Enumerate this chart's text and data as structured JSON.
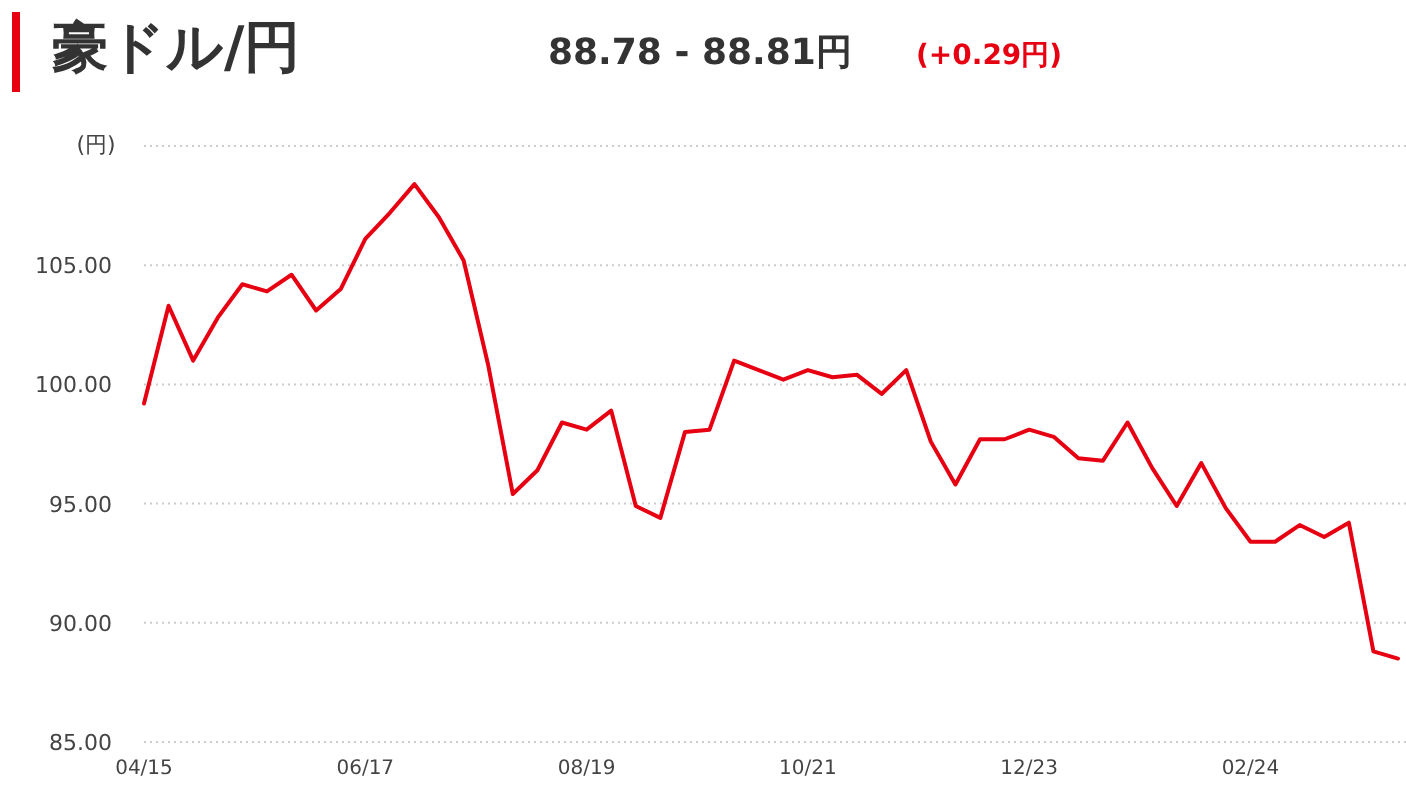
{
  "chart_data": {
    "type": "line",
    "title": "豪ドル/円",
    "subtitle": "88.78 - 88.81円",
    "annotations": [
      "(+0.29円)"
    ],
    "ylabel": "(円)",
    "categories": [
      "04/15",
      null,
      null,
      null,
      null,
      null,
      null,
      null,
      null,
      "06/17",
      null,
      null,
      null,
      null,
      null,
      null,
      null,
      null,
      "08/19",
      null,
      null,
      null,
      null,
      null,
      null,
      null,
      null,
      "10/21",
      null,
      null,
      null,
      null,
      null,
      null,
      null,
      null,
      "12/23",
      null,
      null,
      null,
      null,
      null,
      null,
      null,
      null,
      "02/24",
      null,
      null,
      null,
      null,
      null,
      null
    ],
    "series": [
      {
        "color": "#e60012",
        "values": [
          99.2,
          103.3,
          101.0,
          102.8,
          104.2,
          103.9,
          104.6,
          103.1,
          104.0,
          106.1,
          107.2,
          108.4,
          107.0,
          105.2,
          100.8,
          95.4,
          96.4,
          98.4,
          98.1,
          98.9,
          94.9,
          94.4,
          98.0,
          98.1,
          101.0,
          100.6,
          100.2,
          100.6,
          100.3,
          100.4,
          99.6,
          100.6,
          97.6,
          95.8,
          97.7,
          97.7,
          98.1,
          97.8,
          96.9,
          96.8,
          98.4,
          96.5,
          94.9,
          96.7,
          94.8,
          93.4,
          93.4,
          94.1,
          93.6,
          94.2,
          88.8,
          88.5
        ]
      }
    ],
    "ylim": [
      85,
      110
    ],
    "yticks": [
      {
        "value": 85,
        "label": "85.00"
      },
      {
        "value": 90,
        "label": "90.00"
      },
      {
        "value": 95,
        "label": "95.00"
      },
      {
        "value": 100,
        "label": "100.00"
      },
      {
        "value": 105,
        "label": "105.00"
      },
      {
        "value": 110,
        "label": null
      }
    ],
    "grid": "y",
    "marker": "none",
    "line_style": "solid"
  }
}
